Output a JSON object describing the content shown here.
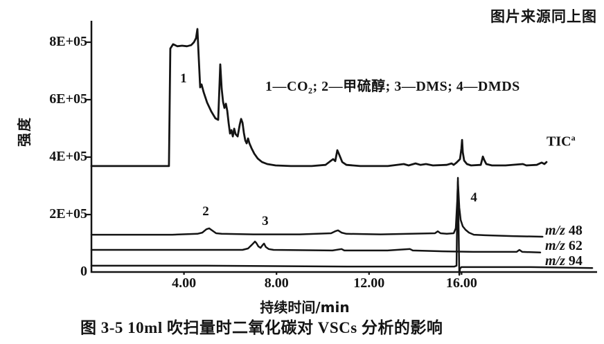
{
  "figure": {
    "source_note": "图片来源同上图",
    "caption": "图 3-5  10ml 吹扫量时二氧化碳对 VSCs 分析的影响",
    "legend_text": "1—CO₂; 2—甲硫醇; 3—DMS; 4—DMDS",
    "legend_items": [
      {
        "number": "1",
        "compound": "CO₂"
      },
      {
        "number": "2",
        "compound": "甲硫醇"
      },
      {
        "number": "3",
        "compound": "DMS"
      },
      {
        "number": "4",
        "compound": "DMDS"
      }
    ]
  },
  "chart_data": {
    "type": "line",
    "title": "",
    "xlabel": "持续时间/min",
    "ylabel": "强度",
    "x_range": [
      0,
      21.9
    ],
    "y_range_counts": [
      0,
      880000
    ],
    "y_scale_note": "series intensity values are in thousands of counts (×10³)",
    "grid": false,
    "x_ticks": [
      {
        "label": "4.00",
        "value": 4
      },
      {
        "label": "8.00",
        "value": 8
      },
      {
        "label": "12.00",
        "value": 12
      },
      {
        "label": "16.00",
        "value": 16
      }
    ],
    "y_ticks": [
      {
        "label": "8E+05",
        "value": 800
      },
      {
        "label": "6E+05",
        "value": 600
      },
      {
        "label": "4E+05",
        "value": 400
      },
      {
        "label": "2E+05",
        "value": 200
      },
      {
        "label": "0",
        "value": 0
      }
    ],
    "peak_annotations": [
      {
        "label": "1",
        "compound": "CO₂",
        "t": 3.98,
        "i": 670
      },
      {
        "label": "2",
        "compound": "甲硫醇",
        "t": 4.94,
        "i": 207
      },
      {
        "label": "3",
        "compound": "DMS",
        "t": 7.51,
        "i": 173
      },
      {
        "label": "4",
        "compound": "DMDS",
        "t": 16.53,
        "i": 255
      }
    ],
    "series": [
      {
        "name": "TIC",
        "label": {
          "text": "TIC",
          "sup": "a"
        },
        "points": [
          [
            0,
            369
          ],
          [
            3.35,
            369
          ],
          [
            3.41,
            778
          ],
          [
            3.53,
            793
          ],
          [
            3.71,
            786
          ],
          [
            3.92,
            788
          ],
          [
            4.13,
            786
          ],
          [
            4.31,
            790
          ],
          [
            4.43,
            800
          ],
          [
            4.52,
            814
          ],
          [
            4.58,
            846
          ],
          [
            4.64,
            742
          ],
          [
            4.7,
            643
          ],
          [
            4.76,
            653
          ],
          [
            4.85,
            626
          ],
          [
            5,
            590
          ],
          [
            5.18,
            559
          ],
          [
            5.36,
            535
          ],
          [
            5.48,
            530
          ],
          [
            5.54,
            658
          ],
          [
            5.57,
            723
          ],
          [
            5.63,
            639
          ],
          [
            5.69,
            593
          ],
          [
            5.75,
            571
          ],
          [
            5.81,
            586
          ],
          [
            5.87,
            561
          ],
          [
            5.93,
            518
          ],
          [
            5.99,
            482
          ],
          [
            6.05,
            494
          ],
          [
            6.11,
            472
          ],
          [
            6.17,
            499
          ],
          [
            6.23,
            480
          ],
          [
            6.32,
            472
          ],
          [
            6.41,
            513
          ],
          [
            6.47,
            533
          ],
          [
            6.53,
            520
          ],
          [
            6.59,
            484
          ],
          [
            6.65,
            458
          ],
          [
            6.71,
            448
          ],
          [
            6.77,
            465
          ],
          [
            6.83,
            448
          ],
          [
            6.92,
            431
          ],
          [
            7.04,
            412
          ],
          [
            7.19,
            395
          ],
          [
            7.37,
            383
          ],
          [
            7.6,
            376
          ],
          [
            7.96,
            371
          ],
          [
            8.62,
            369
          ],
          [
            9.52,
            369
          ],
          [
            10.12,
            373
          ],
          [
            10.33,
            386
          ],
          [
            10.45,
            393
          ],
          [
            10.54,
            386
          ],
          [
            10.63,
            424
          ],
          [
            10.72,
            407
          ],
          [
            10.84,
            383
          ],
          [
            11.02,
            373
          ],
          [
            11.62,
            369
          ],
          [
            12.81,
            369
          ],
          [
            13.5,
            376
          ],
          [
            13.71,
            371
          ],
          [
            14.01,
            378
          ],
          [
            14.22,
            373
          ],
          [
            14.46,
            376
          ],
          [
            14.76,
            371
          ],
          [
            15.36,
            373
          ],
          [
            15.57,
            378
          ],
          [
            15.66,
            373
          ],
          [
            15.78,
            381
          ],
          [
            15.93,
            393
          ],
          [
            15.99,
            429
          ],
          [
            16.02,
            460
          ],
          [
            16.05,
            417
          ],
          [
            16.11,
            388
          ],
          [
            16.23,
            376
          ],
          [
            16.41,
            371
          ],
          [
            16.83,
            373
          ],
          [
            16.92,
            402
          ],
          [
            16.98,
            390
          ],
          [
            17.07,
            376
          ],
          [
            17.31,
            371
          ],
          [
            17.9,
            371
          ],
          [
            18.65,
            376
          ],
          [
            18.8,
            371
          ],
          [
            19.25,
            373
          ],
          [
            19.46,
            381
          ],
          [
            19.58,
            376
          ],
          [
            19.67,
            383
          ]
        ]
      },
      {
        "name": "m/z 48",
        "label": {
          "prefix": "m/z",
          "value": "48"
        },
        "points": [
          [
            0,
            130
          ],
          [
            3.5,
            130
          ],
          [
            4.58,
            133
          ],
          [
            4.79,
            137
          ],
          [
            4.97,
            149
          ],
          [
            5.09,
            152
          ],
          [
            5.21,
            145
          ],
          [
            5.39,
            135
          ],
          [
            5.63,
            133
          ],
          [
            7,
            131
          ],
          [
            9,
            131
          ],
          [
            10.36,
            135
          ],
          [
            10.54,
            142
          ],
          [
            10.66,
            145
          ],
          [
            10.81,
            137
          ],
          [
            11.02,
            133
          ],
          [
            12.5,
            131
          ],
          [
            14.85,
            135
          ],
          [
            14.97,
            142
          ],
          [
            15.09,
            135
          ],
          [
            15.36,
            133
          ],
          [
            15.66,
            135
          ],
          [
            15.75,
            152
          ],
          [
            15.81,
            248
          ],
          [
            15.84,
            316
          ],
          [
            15.9,
            224
          ],
          [
            15.96,
            181
          ],
          [
            16.05,
            159
          ],
          [
            16.17,
            147
          ],
          [
            16.32,
            137
          ],
          [
            16.53,
            130
          ],
          [
            17.01,
            128
          ],
          [
            18.2,
            125
          ],
          [
            19.5,
            123
          ]
        ]
      },
      {
        "name": "m/z 62",
        "label": {
          "prefix": "m/z",
          "value": "62"
        },
        "points": [
          [
            0,
            77
          ],
          [
            3,
            77
          ],
          [
            6.53,
            77
          ],
          [
            6.77,
            82
          ],
          [
            6.95,
            96
          ],
          [
            7.07,
            106
          ],
          [
            7.13,
            101
          ],
          [
            7.22,
            89
          ],
          [
            7.31,
            84
          ],
          [
            7.4,
            94
          ],
          [
            7.46,
            99
          ],
          [
            7.54,
            87
          ],
          [
            7.66,
            80
          ],
          [
            7.87,
            77
          ],
          [
            10.42,
            75
          ],
          [
            10.81,
            80
          ],
          [
            10.93,
            75
          ],
          [
            12.8,
            75
          ],
          [
            13.77,
            80
          ],
          [
            13.89,
            75
          ],
          [
            15.21,
            72
          ],
          [
            16.5,
            70
          ],
          [
            18.38,
            70
          ],
          [
            18.5,
            77
          ],
          [
            18.62,
            70
          ],
          [
            19.4,
            68
          ]
        ]
      },
      {
        "name": "m/z 94",
        "label": {
          "prefix": "m/z",
          "value": "94"
        },
        "points": [
          [
            0,
            22
          ],
          [
            5,
            22
          ],
          [
            11.02,
            19
          ],
          [
            15.21,
            19
          ],
          [
            15.69,
            19
          ],
          [
            15.78,
            22
          ],
          [
            15.81,
            224
          ],
          [
            15.84,
            328
          ],
          [
            15.87,
            152
          ],
          [
            15.9,
            -10
          ],
          [
            15.93,
            12
          ],
          [
            15.99,
            17
          ],
          [
            16.41,
            17
          ],
          [
            19,
            17
          ],
          [
            21.65,
            14
          ]
        ]
      }
    ]
  }
}
